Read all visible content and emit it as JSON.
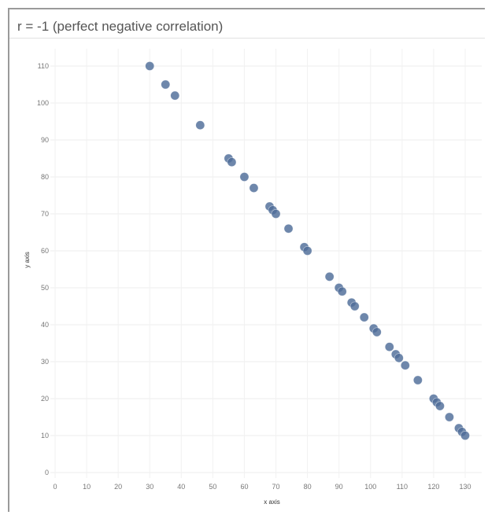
{
  "chart_data": {
    "type": "scatter",
    "title": "r = -1 (perfect negative correlation)",
    "xlabel": "x axis",
    "ylabel": "y axis",
    "xlim": [
      0,
      130
    ],
    "ylim": [
      0,
      110
    ],
    "xticks": [
      0,
      10,
      20,
      30,
      40,
      50,
      60,
      70,
      80,
      90,
      100,
      110,
      120,
      130
    ],
    "yticks": [
      0,
      10,
      20,
      30,
      40,
      50,
      60,
      70,
      80,
      90,
      100,
      110
    ],
    "grid": true,
    "marker_color": "#4e6d98",
    "points": [
      {
        "x": 30,
        "y": 110
      },
      {
        "x": 35,
        "y": 105
      },
      {
        "x": 38,
        "y": 102
      },
      {
        "x": 46,
        "y": 94
      },
      {
        "x": 55,
        "y": 85
      },
      {
        "x": 56,
        "y": 84
      },
      {
        "x": 60,
        "y": 80
      },
      {
        "x": 63,
        "y": 77
      },
      {
        "x": 68,
        "y": 72
      },
      {
        "x": 69,
        "y": 71
      },
      {
        "x": 70,
        "y": 70
      },
      {
        "x": 74,
        "y": 66
      },
      {
        "x": 79,
        "y": 61
      },
      {
        "x": 80,
        "y": 60
      },
      {
        "x": 87,
        "y": 53
      },
      {
        "x": 90,
        "y": 50
      },
      {
        "x": 91,
        "y": 49
      },
      {
        "x": 94,
        "y": 46
      },
      {
        "x": 95,
        "y": 45
      },
      {
        "x": 98,
        "y": 42
      },
      {
        "x": 101,
        "y": 39
      },
      {
        "x": 102,
        "y": 38
      },
      {
        "x": 106,
        "y": 34
      },
      {
        "x": 108,
        "y": 32
      },
      {
        "x": 109,
        "y": 31
      },
      {
        "x": 111,
        "y": 29
      },
      {
        "x": 115,
        "y": 25
      },
      {
        "x": 120,
        "y": 20
      },
      {
        "x": 121,
        "y": 19
      },
      {
        "x": 122,
        "y": 18
      },
      {
        "x": 125,
        "y": 15
      },
      {
        "x": 128,
        "y": 12
      },
      {
        "x": 129,
        "y": 11
      },
      {
        "x": 130,
        "y": 10
      }
    ]
  }
}
